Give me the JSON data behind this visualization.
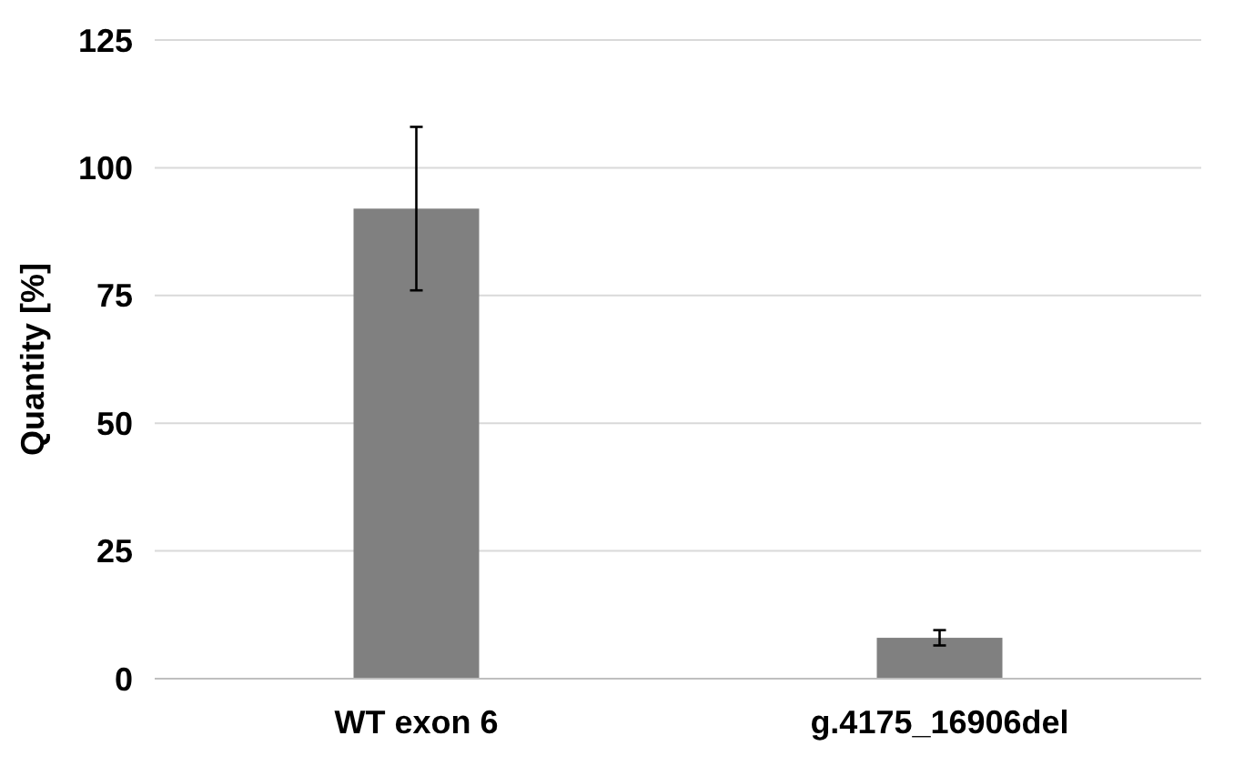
{
  "chart_data": {
    "type": "bar",
    "ylabel": "Quantity [%]",
    "categories": [
      "WT exon 6",
      "g.4175_16906del"
    ],
    "values": [
      92,
      8
    ],
    "errors": [
      16,
      1.5
    ],
    "color": "#808080",
    "ylim": [
      0,
      125
    ],
    "yticks": [
      0,
      25,
      50,
      75,
      100,
      125
    ],
    "grid": "y"
  }
}
